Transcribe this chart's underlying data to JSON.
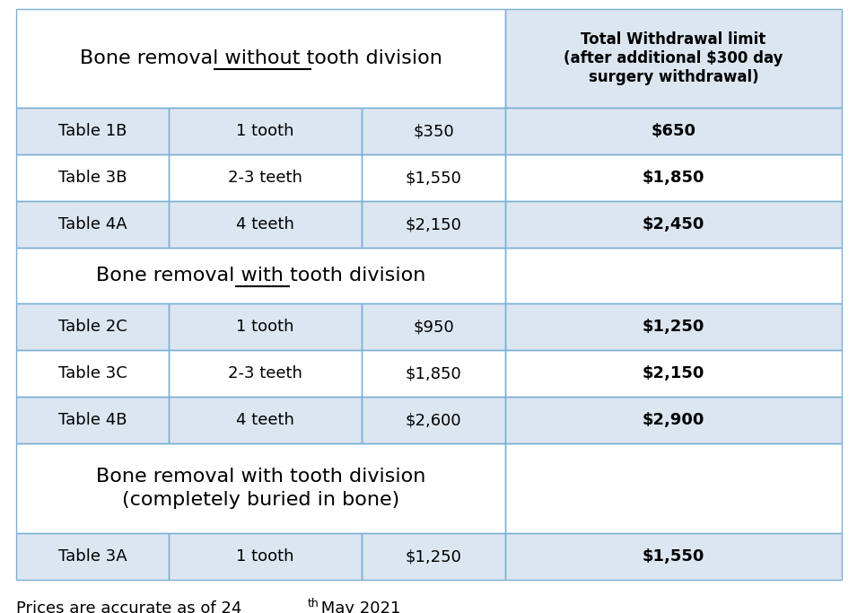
{
  "header_col4": "Total Withdrawal limit\n(after additional $300 day\nsurgery withdrawal)",
  "section1_header": "Bone removal without tooth division",
  "section1_underline_word": "without",
  "section2_header": "Bone removal with tooth division",
  "section2_underline_word": "with",
  "section3_header_line1": "Bone removal with tooth division",
  "section3_header_line2": "(completely buried in bone)",
  "footnote_main": "Prices are accurate as of 24",
  "footnote_super": "th",
  "footnote_tail": " May 2021",
  "rows": [
    {
      "col1": "Table 1B",
      "col2": "1 tooth",
      "col3": "$350",
      "col4": "$650",
      "bg": "light"
    },
    {
      "col1": "Table 3B",
      "col2": "2-3 teeth",
      "col3": "$1,550",
      "col4": "$1,850",
      "bg": "white"
    },
    {
      "col1": "Table 4A",
      "col2": "4 teeth",
      "col3": "$2,150",
      "col4": "$2,450",
      "bg": "light"
    },
    {
      "col1": "Table 2C",
      "col2": "1 tooth",
      "col3": "$950",
      "col4": "$1,250",
      "bg": "light"
    },
    {
      "col1": "Table 3C",
      "col2": "2-3 teeth",
      "col3": "$1,850",
      "col4": "$2,150",
      "bg": "white"
    },
    {
      "col1": "Table 4B",
      "col2": "4 teeth",
      "col3": "$2,600",
      "col4": "$2,900",
      "bg": "light"
    },
    {
      "col1": "Table 3A",
      "col2": "1 tooth",
      "col3": "$1,250",
      "col4": "$1,550",
      "bg": "light"
    }
  ],
  "bg_light": "#dce6f1",
  "bg_white": "#ffffff",
  "border_color": "#7bafd4",
  "font_size_section": 16,
  "font_size_row": 13,
  "font_size_col4_header": 12,
  "font_size_footnote": 13
}
